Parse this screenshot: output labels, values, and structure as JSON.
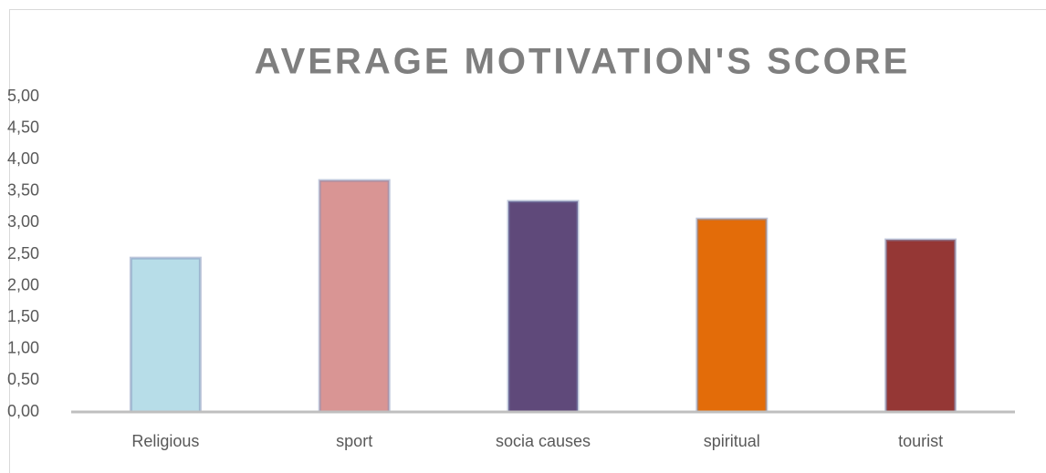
{
  "chart_data": {
    "type": "bar",
    "title": "AVERAGE MOTIVATION'S SCORE",
    "categories": [
      "Religious",
      "sport",
      "socia causes",
      "spiritual",
      "tourist"
    ],
    "values": [
      2.44,
      3.67,
      3.34,
      3.06,
      2.73
    ],
    "colors": [
      "#b7dde8",
      "#d99594",
      "#5f497a",
      "#e36c09",
      "#953735"
    ],
    "ylim": [
      0,
      5
    ],
    "yticks": [
      {
        "value": 0,
        "label": "0,00"
      },
      {
        "value": 0.5,
        "label": "0,50"
      },
      {
        "value": 1,
        "label": "1,00"
      },
      {
        "value": 1.5,
        "label": "1,50"
      },
      {
        "value": 2,
        "label": "2,00"
      },
      {
        "value": 2.5,
        "label": "2,50"
      },
      {
        "value": 3,
        "label": "3,00"
      },
      {
        "value": 3.5,
        "label": "3,50"
      },
      {
        "value": 4,
        "label": "4,00"
      },
      {
        "value": 4.5,
        "label": "4,50"
      },
      {
        "value": 5,
        "label": "5,00"
      }
    ],
    "grid": false
  }
}
